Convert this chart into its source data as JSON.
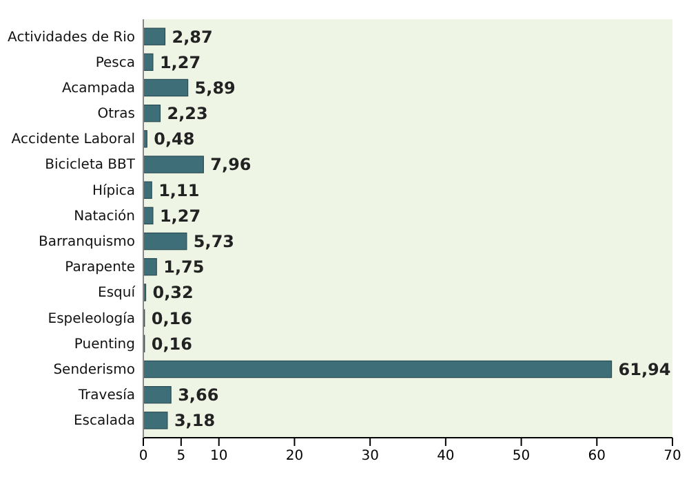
{
  "chart_data": {
    "type": "bar",
    "orientation": "horizontal",
    "categories": [
      "Actividades de Rio",
      "Pesca",
      "Acampada",
      "Otras",
      "Accidente Laboral",
      "Bicicleta BBT",
      "Hípica",
      "Natación",
      "Barranquismo",
      "Parapente",
      "Esquí",
      "Espeleología",
      "Puenting",
      "Senderismo",
      "Travesía",
      "Escalada"
    ],
    "values": [
      2.87,
      1.27,
      5.89,
      2.23,
      0.48,
      7.96,
      1.11,
      1.27,
      5.73,
      1.75,
      0.32,
      0.16,
      0.16,
      61.94,
      3.66,
      3.18
    ],
    "value_labels": [
      "2,87",
      "1,27",
      "5,89",
      "2,23",
      "0,48",
      "7,96",
      "1,11",
      "1,27",
      "5,73",
      "1,75",
      "0,32",
      "0,16",
      "0,16",
      "61,94",
      "3,66",
      "3,18"
    ],
    "color": "#3e6e78",
    "xlim": [
      0,
      70
    ],
    "xticks": [
      0,
      5,
      10,
      20,
      30,
      40,
      50,
      60,
      70
    ],
    "grid": false
  }
}
